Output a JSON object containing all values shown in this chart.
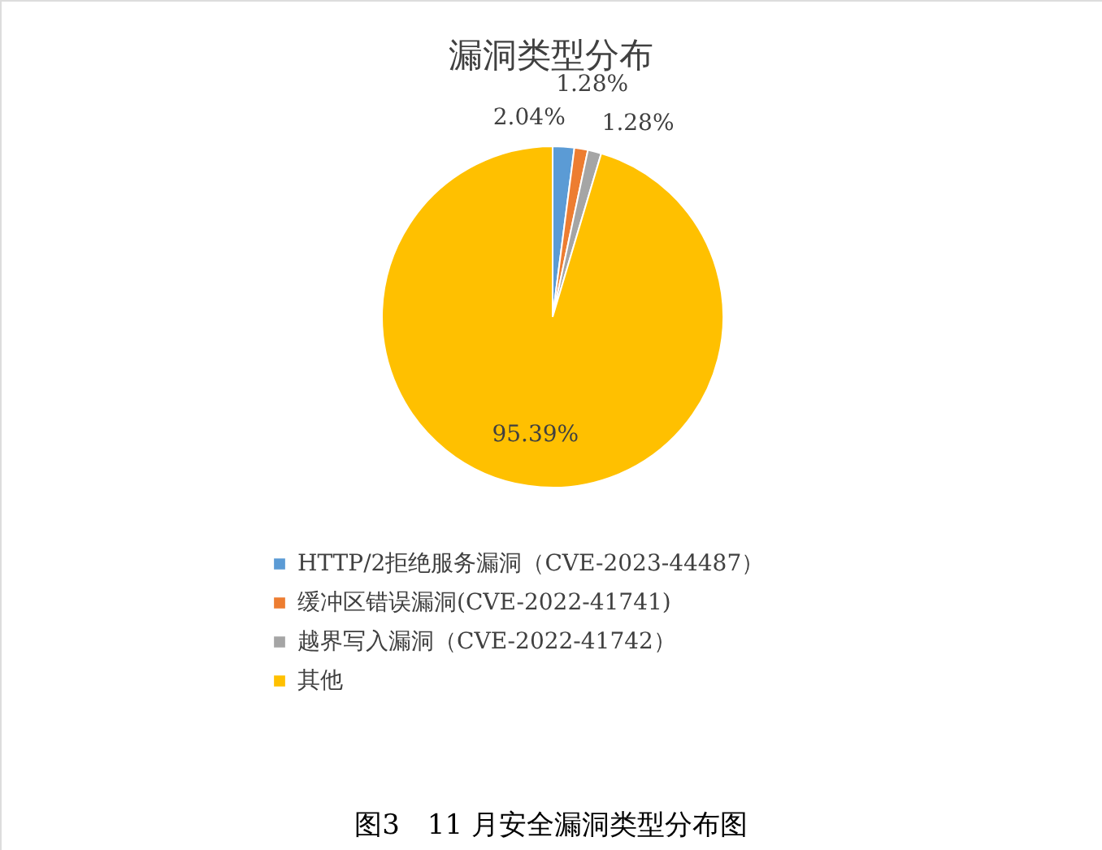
{
  "chart_data": {
    "type": "pie",
    "title": "漏洞类型分布",
    "categories": [
      "HTTP/2拒绝服务漏洞（CVE-2023-44487）",
      "缓冲区错误漏洞(CVE-2022-41741)",
      "越界写入漏洞（CVE-2022-41742）",
      "其他"
    ],
    "values": [
      2.04,
      1.28,
      1.28,
      95.39
    ],
    "colors": [
      "#5b9bd5",
      "#ed7d31",
      "#a5a5a5",
      "#ffc000"
    ],
    "value_labels": [
      "2.04%",
      "1.28%",
      "1.28%",
      "95.39%"
    ],
    "legend": "bottom",
    "annotations": [
      "图3　11 月安全漏洞类型分布图"
    ]
  }
}
